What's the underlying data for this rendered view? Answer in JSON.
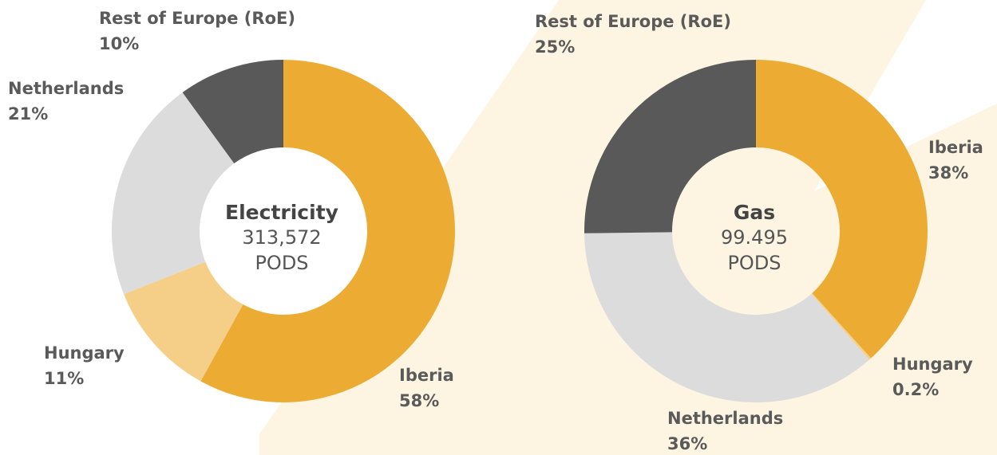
{
  "chart_data": [
    {
      "type": "pie",
      "center_label": "Electricity",
      "center_value": "313,572",
      "center_unit": "PODS",
      "categories": [
        "Iberia",
        "Hungary",
        "Netherlands",
        "Rest of Europe (RoE)"
      ],
      "values": [
        58,
        11,
        21,
        10
      ],
      "value_labels": [
        "58%",
        "11%",
        "21%",
        "10%"
      ],
      "colors": [
        "#ecac33",
        "#f5cf88",
        "#dcdcdc",
        "#595959"
      ]
    },
    {
      "type": "pie",
      "center_label": "Gas",
      "center_value": "99.495",
      "center_unit": "PODS",
      "categories": [
        "Iberia",
        "Hungary",
        "Netherlands",
        "Rest of Europe (RoE)"
      ],
      "values": [
        38,
        0.2,
        36,
        25
      ],
      "value_labels": [
        "38%",
        "0.2%",
        "36%",
        "25%"
      ],
      "colors": [
        "#ecac33",
        "#f5cf88",
        "#dcdcdc",
        "#595959"
      ]
    }
  ]
}
